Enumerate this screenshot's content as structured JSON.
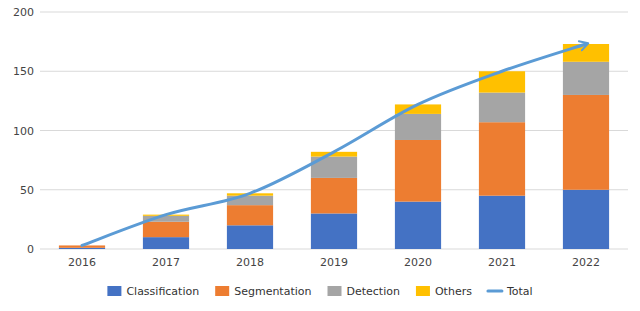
{
  "chart_data": {
    "type": "bar",
    "stacked": true,
    "grid": true,
    "legend": "bottom",
    "categories": [
      "2016",
      "2017",
      "2018",
      "2019",
      "2020",
      "2021",
      "2022"
    ],
    "series": [
      {
        "name": "Classification",
        "color": "#4472C4",
        "type": "bar",
        "values": [
          1,
          10,
          20,
          30,
          40,
          45,
          50
        ]
      },
      {
        "name": "Segmentation",
        "color": "#ED7D31",
        "type": "bar",
        "values": [
          2,
          13,
          17,
          30,
          52,
          62,
          80
        ]
      },
      {
        "name": "Detection",
        "color": "#A5A5A5",
        "type": "bar",
        "values": [
          0,
          5,
          8,
          18,
          22,
          25,
          28
        ]
      },
      {
        "name": "Others",
        "color": "#FFC000",
        "type": "bar",
        "values": [
          0,
          1,
          2,
          4,
          8,
          18,
          15
        ]
      },
      {
        "name": "Total",
        "color": "#5B9BD5",
        "type": "line",
        "values": [
          3,
          29,
          47,
          82,
          122,
          150,
          173
        ]
      }
    ],
    "ylim": [
      0,
      200
    ],
    "yticks": [
      0,
      50,
      100,
      150,
      200
    ]
  }
}
